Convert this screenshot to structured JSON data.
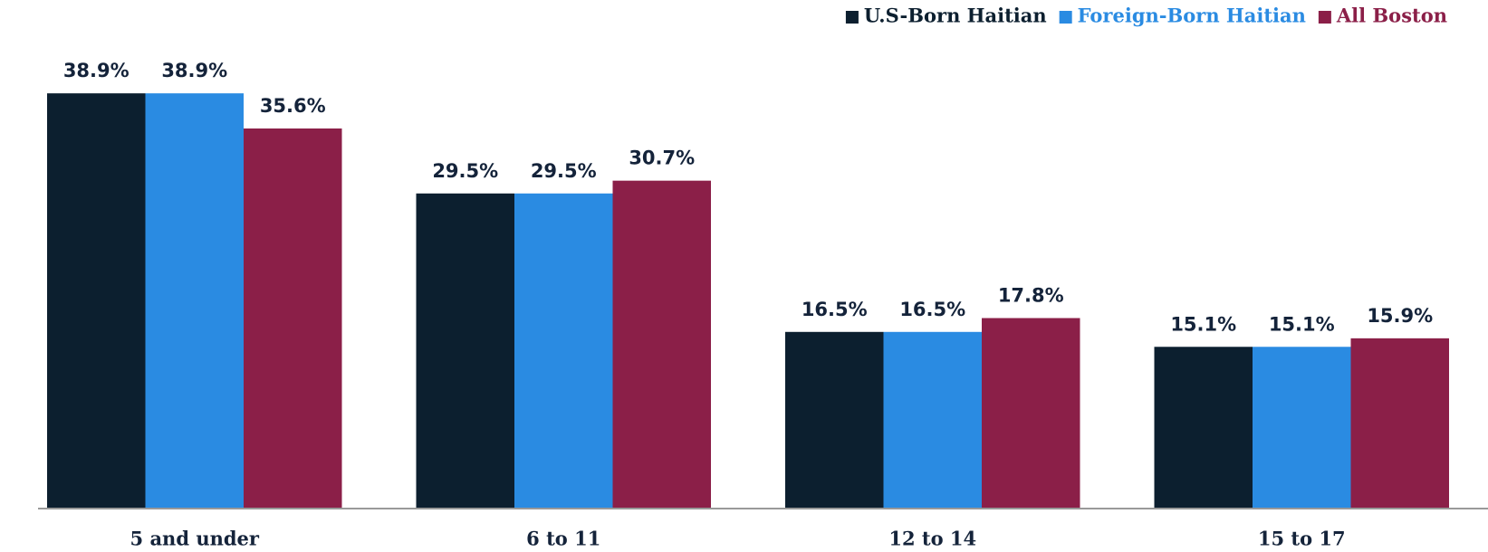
{
  "chart_data": {
    "type": "bar",
    "categories": [
      "5 and under",
      "6 to 11",
      "12 to 14",
      "15 to 17"
    ],
    "series": [
      {
        "name": "U.S-Born Haitian",
        "color": "#0c1f2f",
        "values": [
          38.9,
          29.5,
          16.5,
          15.1
        ],
        "value_labels": [
          "38.9%",
          "29.5%",
          "16.5%",
          "15.1%"
        ]
      },
      {
        "name": "Foreign-Born Haitian",
        "color": "#2a8be2",
        "values": [
          38.9,
          29.5,
          16.5,
          15.1
        ],
        "value_labels": [
          "38.9%",
          "29.5%",
          "16.5%",
          "15.1%"
        ]
      },
      {
        "name": "All Boston",
        "color": "#8b1f48",
        "values": [
          35.6,
          30.7,
          17.8,
          15.9
        ],
        "value_labels": [
          "35.6%",
          "30.7%",
          "17.8%",
          "15.9%"
        ]
      }
    ],
    "legend": "top-right"
  }
}
